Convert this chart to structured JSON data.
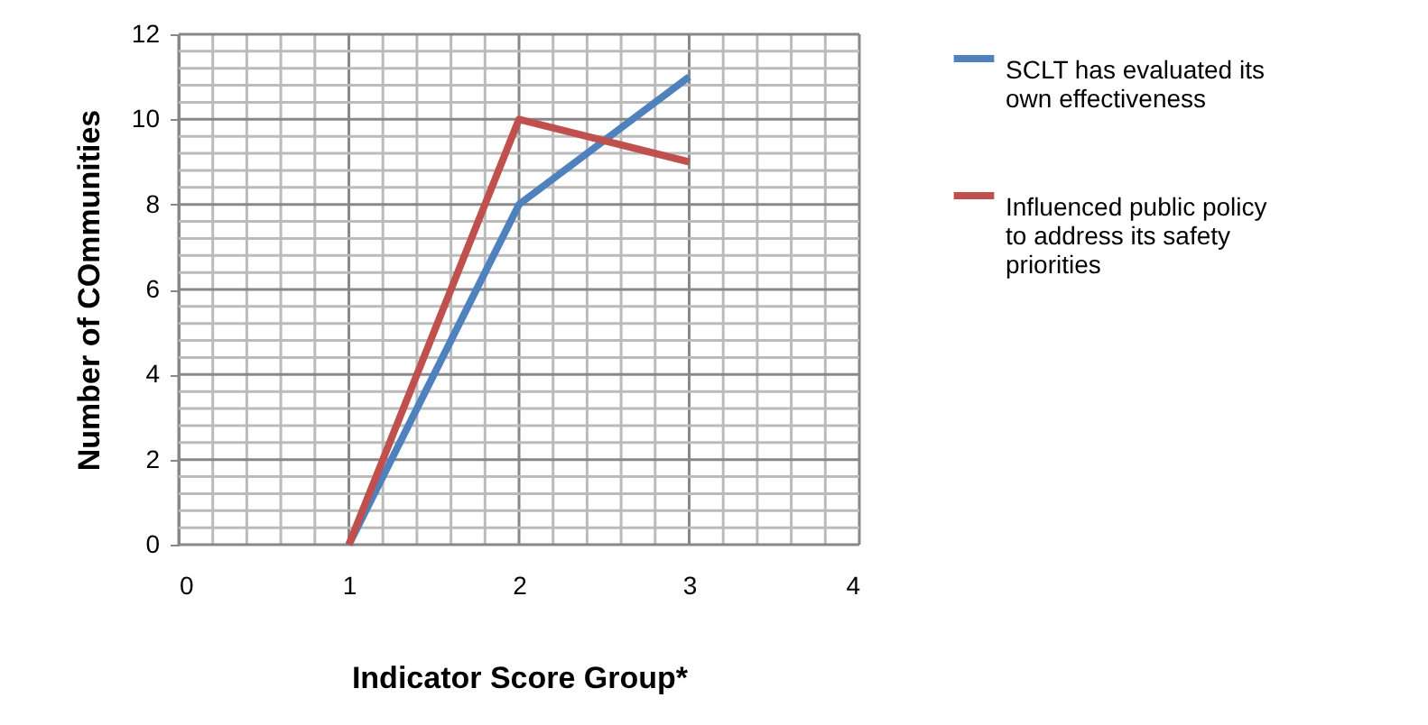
{
  "chart_data": {
    "type": "line",
    "xlabel": "Indicator Score Group*",
    "ylabel": "Number of COmmunities",
    "x": [
      1,
      2,
      3
    ],
    "series": [
      {
        "name": "SCLT has evaluated its own effectiveness",
        "color": "#4f81bd",
        "values": [
          0,
          8,
          11
        ]
      },
      {
        "name": "Influenced public policy to address its safety priorities",
        "color": "#c0504d",
        "values": [
          0,
          10,
          9
        ]
      }
    ],
    "xlim": [
      0,
      4
    ],
    "xticks": [
      0,
      1,
      2,
      3,
      4
    ],
    "ylim": [
      0,
      12
    ],
    "yticks": [
      0,
      2,
      4,
      6,
      8,
      10,
      12
    ],
    "grid": true,
    "legend": "right",
    "marker": "none",
    "line_style": "solid"
  }
}
